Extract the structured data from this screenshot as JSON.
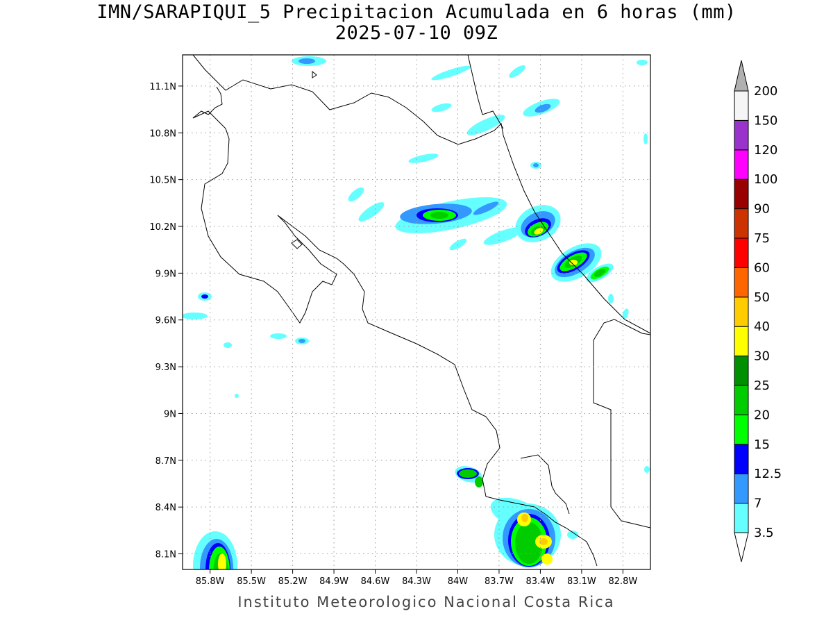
{
  "title": {
    "line1": "IMN/SARAPIQUI_5 Precipitacion Acumulada en 6 horas (mm)",
    "line2": "2025-07-10 09Z"
  },
  "credit": "Instituto Meteorologico Nacional Costa Rica",
  "map": {
    "lon_range": [
      -86.0,
      -82.6
    ],
    "lat_range": [
      8.0,
      11.3
    ],
    "lat_ticks": [
      {
        "value": 11.1,
        "label": "11.1N"
      },
      {
        "value": 10.8,
        "label": "10.8N"
      },
      {
        "value": 10.5,
        "label": "10.5N"
      },
      {
        "value": 10.2,
        "label": "10.2N"
      },
      {
        "value": 9.9,
        "label": "9.9N"
      },
      {
        "value": 9.6,
        "label": "9.6N"
      },
      {
        "value": 9.3,
        "label": "9.3N"
      },
      {
        "value": 9.0,
        "label": "9N"
      },
      {
        "value": 8.7,
        "label": "8.7N"
      },
      {
        "value": 8.4,
        "label": "8.4N"
      },
      {
        "value": 8.1,
        "label": "8.1N"
      }
    ],
    "lon_ticks": [
      {
        "value": -85.8,
        "label": "85.8W"
      },
      {
        "value": -85.5,
        "label": "85.5W"
      },
      {
        "value": -85.2,
        "label": "85.2W"
      },
      {
        "value": -84.9,
        "label": "84.9W"
      },
      {
        "value": -84.6,
        "label": "84.6W"
      },
      {
        "value": -84.3,
        "label": "84.3W"
      },
      {
        "value": -84.0,
        "label": "84W"
      },
      {
        "value": -83.7,
        "label": "83.7W"
      },
      {
        "value": -83.4,
        "label": "83.4W"
      },
      {
        "value": -83.1,
        "label": "83.1W"
      },
      {
        "value": -82.8,
        "label": "82.8W"
      }
    ],
    "grid": "dotted"
  },
  "legend": {
    "levels": [
      {
        "label": "3.5",
        "color": "#66ffff"
      },
      {
        "label": "7",
        "color": "#3399ff"
      },
      {
        "label": "12.5",
        "color": "#0000ff"
      },
      {
        "label": "15",
        "color": "#00ff00"
      },
      {
        "label": "20",
        "color": "#00cc00"
      },
      {
        "label": "25",
        "color": "#008f00"
      },
      {
        "label": "30",
        "color": "#ffff00"
      },
      {
        "label": "40",
        "color": "#ffcc00"
      },
      {
        "label": "50",
        "color": "#ff6600"
      },
      {
        "label": "60",
        "color": "#ff0000"
      },
      {
        "label": "75",
        "color": "#cc3300"
      },
      {
        "label": "90",
        "color": "#990000"
      },
      {
        "label": "100",
        "color": "#ff00ff"
      },
      {
        "label": "120",
        "color": "#9933cc"
      },
      {
        "label": "150",
        "color": "#f5f5f5"
      },
      {
        "label": "200",
        "color": "#b0b0b0"
      }
    ]
  }
}
